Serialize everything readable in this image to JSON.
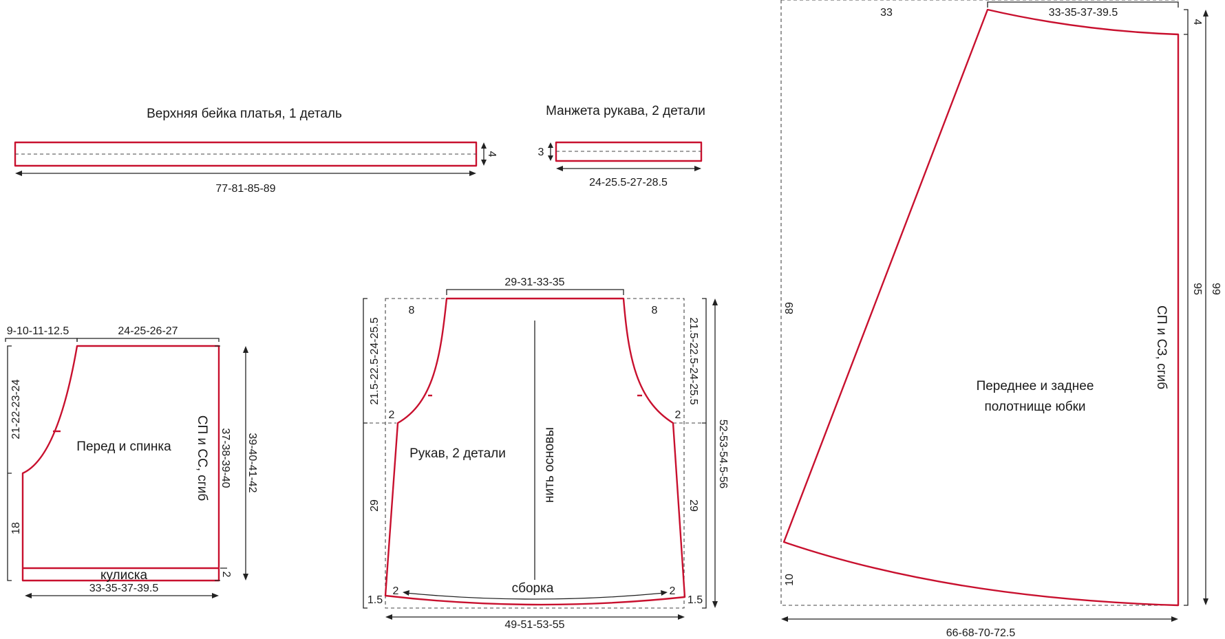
{
  "colors": {
    "pattern_outline": "#c8102e",
    "lines": "#222222",
    "background": "#ffffff"
  },
  "pieces": {
    "top_band": {
      "title": "Верхняя бейка платья, 1 деталь",
      "width": "77-81-85-89",
      "height": "4"
    },
    "cuff": {
      "title": "Манжета рукава, 2 детали",
      "width": "24-25.5-27-28.5",
      "height": "3"
    },
    "bodice": {
      "title": "Перед и спинка",
      "fold": "СП и СС, сгиб",
      "top_left": "9-10-11-12.5",
      "top_right": "24-25-26-27",
      "armhole": "21-22-23-24",
      "side": "18",
      "fold_height": "37-38-39-40",
      "total_height": "39-40-41-42",
      "casing": "кулиска",
      "casing_width": "2",
      "bottom": "33-35-37-39.5"
    },
    "sleeve": {
      "title": "Рукав, 2 детали",
      "grain": "нить основы",
      "gather": "сборка",
      "top": "29-31-33-35",
      "cap_height": "21.5-22.5-24-25.5",
      "top_offset": "8",
      "underarm_offset": "2",
      "side_height": "29",
      "bottom_offset": "2",
      "hem": "1.5",
      "total_height": "52-53-54.5-56",
      "bottom": "49-51-53-55"
    },
    "skirt": {
      "title_line1": "Переднее и заднее",
      "title_line2": "полотнище юбки",
      "fold": "СП и СЗ, сгиб",
      "top_left": "33",
      "top_right": "33-35-37-39.5",
      "waist_drop": "4",
      "left_height": "89",
      "fold_height": "95",
      "total_height": "99",
      "hem_drop": "10",
      "bottom": "66-68-70-72.5"
    }
  }
}
